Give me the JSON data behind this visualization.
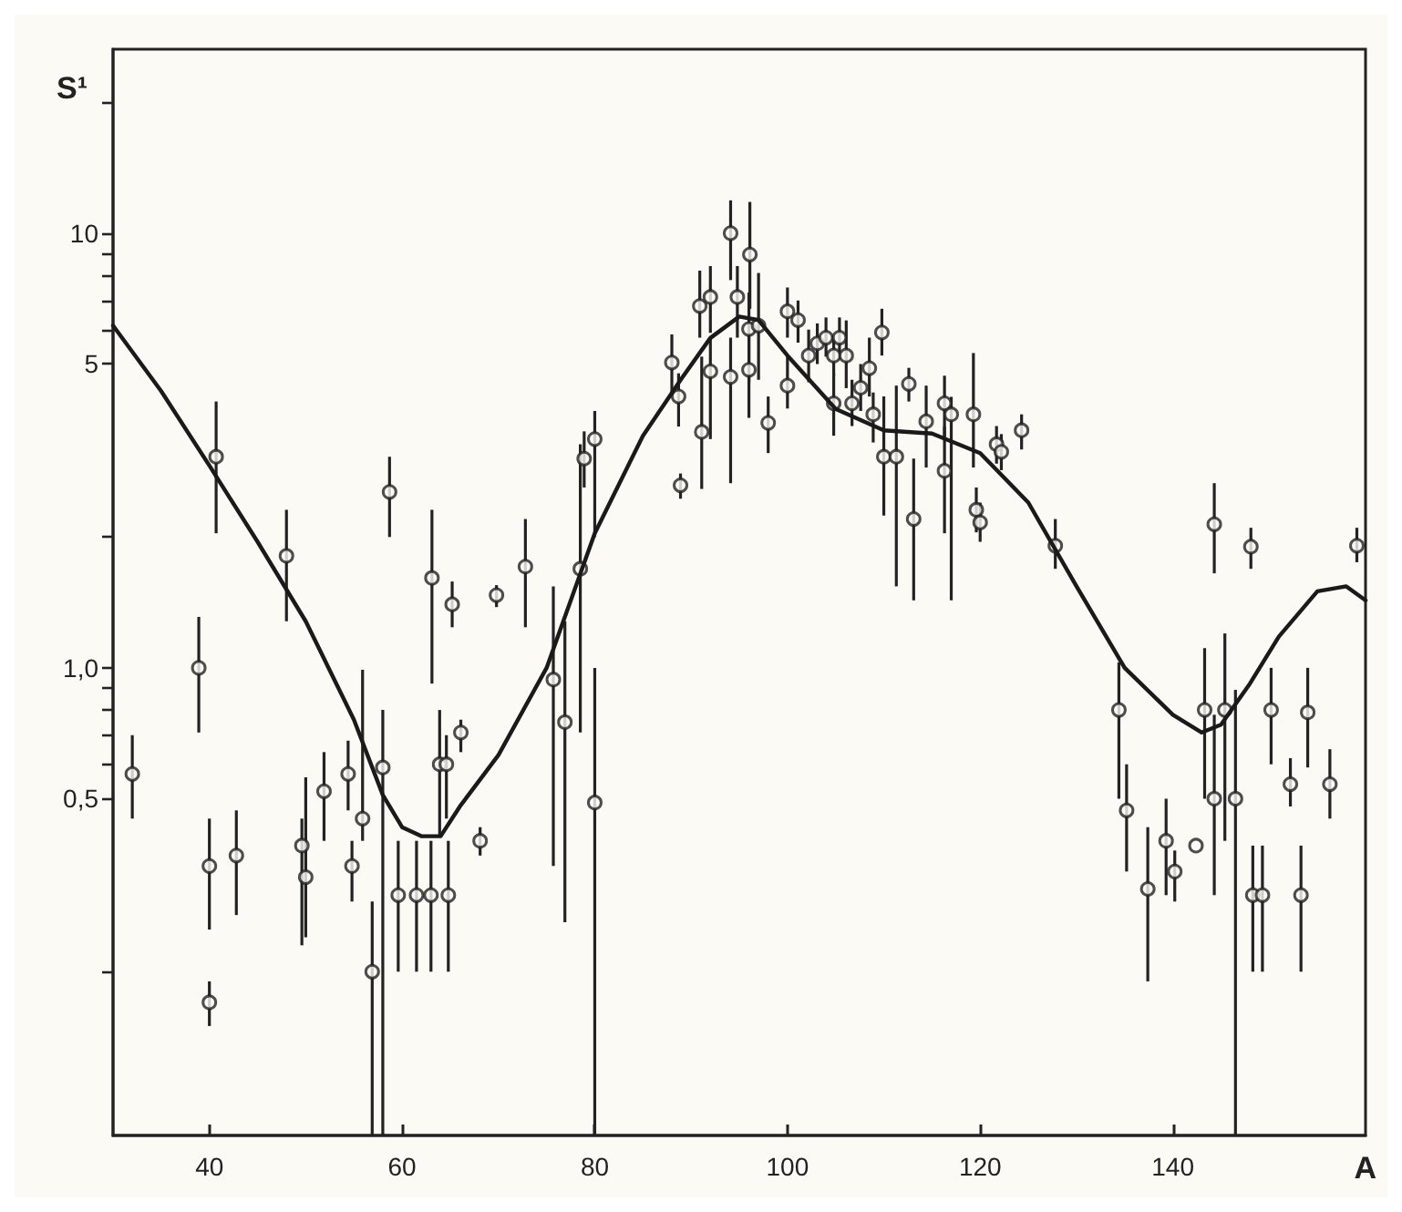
{
  "chart_data": {
    "type": "scatter",
    "xlabel": "A",
    "ylabel": "S¹",
    "log": "y",
    "grid": false,
    "xlim": [
      30,
      160
    ],
    "xticks": [
      40,
      60,
      80,
      100,
      120,
      140
    ],
    "ylim": [
      0.084,
      26.5
    ],
    "yticks": [
      {
        "value": 0.2,
        "label": null
      },
      {
        "value": 0.5,
        "label": "0,5"
      },
      {
        "value": 0.6,
        "label": null
      },
      {
        "value": 0.7,
        "label": null
      },
      {
        "value": 0.8,
        "label": null
      },
      {
        "value": 0.9,
        "label": null
      },
      {
        "value": 1,
        "label": "1,0"
      },
      {
        "value": 2,
        "label": null
      },
      5,
      {
        "value": 6,
        "label": null
      },
      {
        "value": 7,
        "label": null
      },
      {
        "value": 8,
        "label": null
      },
      {
        "value": 9,
        "label": null
      },
      10,
      {
        "value": 20,
        "label": null
      }
    ],
    "series": [
      {
        "color": "#222222",
        "marker": "circle",
        "x": [
          32,
          38.9,
          40,
          40,
          40.7,
          42.8,
          48,
          49.6,
          50,
          51.9,
          54.4,
          54.8,
          55.9,
          56.9,
          58,
          58.7,
          59.6,
          61.5,
          63.0,
          63.1,
          63.9,
          64.6,
          64.8,
          65.2,
          66.1,
          68.1,
          69.8,
          72.8,
          75.7,
          76.9,
          78.5,
          78.9,
          80,
          80,
          88,
          88.7,
          88.9,
          90.9,
          91.1,
          92,
          92,
          94.1,
          94.1,
          94.8,
          96.1,
          96,
          96,
          97,
          98,
          100,
          100,
          101.1,
          102.2,
          103.1,
          104,
          104.8,
          104.8,
          105.4,
          106.1,
          106.7,
          107.6,
          108.5,
          108.9,
          109.8,
          110,
          111.3,
          112.6,
          113.1,
          114.4,
          116.3,
          116.3,
          117,
          119.3,
          119.6,
          120,
          121.7,
          122.2,
          124.3,
          127.8,
          134.4,
          135.2,
          137.4,
          139.3,
          140.2,
          142.4,
          143.3,
          144.3,
          144.3,
          145.4,
          146.5,
          148.1,
          148.3,
          149.3,
          150.2,
          152.2,
          153.3,
          154,
          156.3,
          159.1
        ],
        "values": [
          0.57,
          1.0,
          0.35,
          0.17,
          3.06,
          0.37,
          1.81,
          0.39,
          0.33,
          0.52,
          0.57,
          0.35,
          0.45,
          0.2,
          0.59,
          2.54,
          0.3,
          0.3,
          0.3,
          1.61,
          0.6,
          0.6,
          0.3,
          1.4,
          0.71,
          0.4,
          1.47,
          1.71,
          0.94,
          0.75,
          1.69,
          3.03,
          3.36,
          0.49,
          5.04,
          4.21,
          2.63,
          6.8,
          3.49,
          7.13,
          4.81,
          10.0,
          4.67,
          7.13,
          8.93,
          6.02,
          4.85,
          6.13,
          3.66,
          6.61,
          4.46,
          6.31,
          5.23,
          5.58,
          5.75,
          5.23,
          4.06,
          5.75,
          5.23,
          4.06,
          4.41,
          4.89,
          3.83,
          5.91,
          3.06,
          3.06,
          4.5,
          2.2,
          3.69,
          4.06,
          2.84,
          3.83,
          3.83,
          2.31,
          2.16,
          3.27,
          3.14,
          3.52,
          1.91,
          0.8,
          0.47,
          0.31,
          0.4,
          0.34,
          0.39,
          0.8,
          0.5,
          2.14,
          0.8,
          0.5,
          1.9,
          0.3,
          0.3,
          0.8,
          0.54,
          0.3,
          0.79,
          0.54,
          1.91
        ],
        "errors": [
          [
            0.45,
            0.7
          ],
          [
            0.71,
            1.31
          ],
          [
            0.25,
            0.45
          ],
          [
            0.15,
            0.19
          ],
          [
            2.04,
            4.1
          ],
          [
            0.27,
            0.47
          ],
          [
            1.28,
            2.31
          ],
          [
            0.23,
            0.45
          ],
          [
            0.24,
            0.56
          ],
          [
            0.4,
            0.64
          ],
          [
            0.47,
            0.68
          ],
          [
            0.29,
            0.4
          ],
          [
            0.4,
            0.99
          ],
          [
            0.084,
            0.29
          ],
          [
            0.084,
            0.8
          ],
          [
            2.0,
            3.06
          ],
          [
            0.2,
            0.4
          ],
          [
            0.2,
            0.4
          ],
          [
            0.2,
            0.4
          ],
          [
            0.92,
            2.31
          ],
          [
            0.41,
            0.8
          ],
          [
            0.45,
            0.7
          ],
          [
            0.2,
            0.4
          ],
          [
            1.24,
            1.58
          ],
          [
            0.64,
            0.76
          ],
          [
            0.37,
            0.43
          ],
          [
            1.38,
            1.55
          ],
          [
            1.24,
            2.2
          ],
          [
            0.35,
            1.54
          ],
          [
            0.26,
            1.28
          ],
          [
            0.71,
            3.27
          ],
          [
            2.6,
            3.5
          ],
          [
            2.0,
            3.9
          ],
          [
            0.084,
            1.0
          ],
          [
            4.25,
            5.85
          ],
          [
            3.59,
            4.76
          ],
          [
            2.45,
            2.8
          ],
          [
            5.75,
            8.2
          ],
          [
            2.58,
            5.2
          ],
          [
            5.9,
            8.4
          ],
          [
            3.36,
            5.75
          ],
          [
            7.8,
            11.9
          ],
          [
            2.66,
            5.75
          ],
          [
            5.75,
            8.4
          ],
          [
            6.7,
            11.8
          ],
          [
            4.54,
            7.3
          ],
          [
            3.76,
            5.75
          ],
          [
            4.6,
            8.1
          ],
          [
            3.12,
            4.21
          ],
          [
            5.75,
            7.5
          ],
          [
            3.95,
            5.2
          ],
          [
            5.6,
            7.0
          ],
          [
            4.54,
            6.0
          ],
          [
            5.0,
            6.2
          ],
          [
            5.2,
            6.4
          ],
          [
            4.7,
            5.8
          ],
          [
            3.42,
            4.76
          ],
          [
            5.2,
            6.4
          ],
          [
            4.4,
            6.3
          ],
          [
            3.6,
            4.6
          ],
          [
            3.9,
            5.0
          ],
          [
            4.21,
            5.75
          ],
          [
            3.3,
            4.3
          ],
          [
            5.23,
            6.7
          ],
          [
            2.24,
            4.21
          ],
          [
            1.54,
            4.46
          ],
          [
            4.1,
            4.9
          ],
          [
            1.43,
            3.03
          ],
          [
            2.89,
            4.46
          ],
          [
            3.4,
            4.7
          ],
          [
            2.04,
            3.59
          ],
          [
            1.43,
            4.2
          ],
          [
            2.89,
            5.3
          ],
          [
            2.05,
            2.6
          ],
          [
            1.95,
            2.4
          ],
          [
            2.95,
            3.6
          ],
          [
            2.85,
            3.45
          ],
          [
            3.18,
            3.83
          ],
          [
            1.69,
            2.2
          ],
          [
            0.5,
            1.03
          ],
          [
            0.34,
            0.6
          ],
          [
            0.19,
            0.43
          ],
          [
            0.3,
            0.5
          ],
          [
            0.29,
            0.38
          ],
          null,
          [
            0.5,
            1.11
          ],
          [
            0.3,
            0.78
          ],
          [
            1.65,
            2.66
          ],
          [
            0.4,
            1.2
          ],
          [
            0.084,
            0.89
          ],
          [
            1.69,
            2.1
          ],
          [
            0.2,
            0.39
          ],
          [
            0.2,
            0.39
          ],
          [
            0.6,
            1.0
          ],
          [
            0.48,
            0.62
          ],
          [
            0.2,
            0.39
          ],
          [
            0.59,
            1.0
          ],
          [
            0.45,
            0.65
          ],
          [
            1.75,
            2.1
          ]
        ]
      },
      {
        "type": "line",
        "color": "#1a1a1a",
        "marker": "none",
        "line_style": "solid",
        "x": [
          30,
          35,
          40,
          45,
          50,
          55,
          58,
          60,
          62,
          64,
          66,
          70,
          75,
          80,
          85,
          89,
          92,
          95,
          97,
          100,
          105,
          110,
          115,
          120,
          125,
          130,
          135,
          140,
          143,
          145,
          148,
          151,
          155,
          158,
          160
        ],
        "values": [
          6.13,
          4.33,
          2.92,
          1.95,
          1.28,
          0.76,
          0.51,
          0.43,
          0.41,
          0.41,
          0.48,
          0.63,
          1.0,
          2.04,
          3.42,
          4.63,
          5.74,
          6.43,
          6.31,
          5.23,
          3.94,
          3.52,
          3.46,
          3.12,
          2.4,
          1.54,
          1.0,
          0.78,
          0.71,
          0.74,
          0.92,
          1.18,
          1.5,
          1.54,
          1.43
        ]
      }
    ]
  }
}
